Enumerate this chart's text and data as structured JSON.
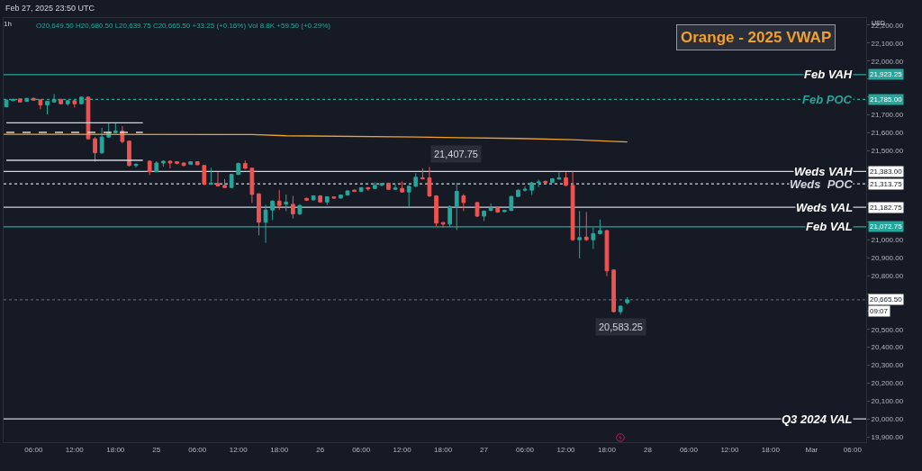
{
  "chart_data": {
    "type": "candlestick",
    "title": "1h",
    "subtitle": "O20,649.50 H20,680.50 L20,639.75 C20,665.50 +33.25 (+0.16%) Vol 8.8K +59.50 (+0.29%)",
    "x": [
      "2025-02-24T02:00",
      "2025-02-24T03:00",
      "2025-02-24T04:00",
      "2025-02-24T05:00",
      "2025-02-24T06:00",
      "2025-02-24T07:00",
      "2025-02-24T08:00",
      "2025-02-24T09:00",
      "2025-02-24T10:00",
      "2025-02-24T11:00",
      "2025-02-24T12:00",
      "2025-02-24T13:00",
      "2025-02-24T14:00",
      "2025-02-24T15:00",
      "2025-02-24T16:00",
      "2025-02-24T17:00",
      "2025-02-24T18:00",
      "2025-02-24T19:00",
      "2025-02-24T20:00",
      "2025-02-24T21:00",
      "2025-02-24T23:00",
      "2025-02-25T00:00",
      "2025-02-25T01:00",
      "2025-02-25T02:00",
      "2025-02-25T03:00",
      "2025-02-25T04:00",
      "2025-02-25T05:00",
      "2025-02-25T06:00",
      "2025-02-25T07:00",
      "2025-02-25T08:00",
      "2025-02-25T09:00",
      "2025-02-25T10:00",
      "2025-02-25T11:00",
      "2025-02-25T12:00",
      "2025-02-25T13:00",
      "2025-02-25T14:00",
      "2025-02-25T15:00",
      "2025-02-25T16:00",
      "2025-02-25T17:00",
      "2025-02-25T18:00",
      "2025-02-25T19:00",
      "2025-02-25T20:00",
      "2025-02-25T21:00",
      "2025-02-25T22:00",
      "2025-02-25T23:00",
      "2025-02-26T00:00",
      "2025-02-26T01:00",
      "2025-02-26T02:00",
      "2025-02-26T03:00",
      "2025-02-26T04:00",
      "2025-02-26T05:00",
      "2025-02-26T06:00",
      "2025-02-26T07:00",
      "2025-02-26T08:00",
      "2025-02-26T09:00",
      "2025-02-26T10:00",
      "2025-02-26T11:00",
      "2025-02-26T12:00",
      "2025-02-26T13:00",
      "2025-02-26T14:00",
      "2025-02-26T15:00",
      "2025-02-26T16:00",
      "2025-02-26T17:00",
      "2025-02-26T18:00",
      "2025-02-26T19:00",
      "2025-02-26T20:00",
      "2025-02-26T21:00",
      "2025-02-26T23:00",
      "2025-02-27T00:00",
      "2025-02-27T01:00",
      "2025-02-27T02:00",
      "2025-02-27T03:00",
      "2025-02-27T04:00",
      "2025-02-27T05:00",
      "2025-02-27T06:00",
      "2025-02-27T07:00",
      "2025-02-27T08:00",
      "2025-02-27T09:00",
      "2025-02-27T10:00",
      "2025-02-27T11:00",
      "2025-02-27T12:00",
      "2025-02-27T13:00",
      "2025-02-27T14:00",
      "2025-02-27T15:00",
      "2025-02-27T16:00",
      "2025-02-27T17:00",
      "2025-02-27T18:00",
      "2025-02-27T19:00",
      "2025-02-27T20:00",
      "2025-02-27T21:00"
    ],
    "ohlc": [
      [
        21744,
        21785,
        21740,
        21781
      ],
      [
        21778,
        21790,
        21775,
        21785
      ],
      [
        21788,
        21790,
        21768,
        21771
      ],
      [
        21774,
        21793,
        21772,
        21791
      ],
      [
        21791,
        21795,
        21778,
        21781
      ],
      [
        21783,
        21786,
        21730,
        21754
      ],
      [
        21754,
        21776,
        21702,
        21774
      ],
      [
        21771,
        21815,
        21768,
        21785
      ],
      [
        21785,
        21788,
        21758,
        21761
      ],
      [
        21761,
        21781,
        21750,
        21778
      ],
      [
        21778,
        21781,
        21740,
        21761
      ],
      [
        21761,
        21800,
        21758,
        21798
      ],
      [
        21798,
        21800,
        21562,
        21565
      ],
      [
        21565,
        21575,
        21437,
        21487
      ],
      [
        21487,
        21626,
        21480,
        21575
      ],
      [
        21575,
        21656,
        21570,
        21602
      ],
      [
        21599,
        21652,
        21595,
        21609
      ],
      [
        21609,
        21636,
        21540,
        21550
      ],
      [
        21552,
        21555,
        21410,
        21416
      ],
      [
        21416,
        21428,
        21405,
        21423
      ],
      [
        21440,
        21445,
        21363,
        21381
      ],
      [
        21381,
        21440,
        21378,
        21430
      ],
      [
        21430,
        21445,
        21410,
        21440
      ],
      [
        21440,
        21445,
        21400,
        21430
      ],
      [
        21437,
        21440,
        21422,
        21428
      ],
      [
        21430,
        21432,
        21412,
        21416
      ],
      [
        21423,
        21440,
        21420,
        21437
      ],
      [
        21437,
        21440,
        21418,
        21420
      ],
      [
        21416,
        21420,
        21305,
        21312
      ],
      [
        21312,
        21403,
        21308,
        21317
      ],
      [
        21315,
        21379,
        21298,
        21302
      ],
      [
        21305,
        21340,
        21290,
        21293
      ],
      [
        21293,
        21370,
        21290,
        21366
      ],
      [
        21366,
        21432,
        21362,
        21427
      ],
      [
        21427,
        21444,
        21398,
        21400
      ],
      [
        21401,
        21405,
        21207,
        21254
      ],
      [
        21258,
        21260,
        21026,
        21099
      ],
      [
        21099,
        21197,
        20984,
        21167
      ],
      [
        21167,
        21222,
        21111,
        21217
      ],
      [
        21217,
        21278,
        21167,
        21193
      ],
      [
        21200,
        21254,
        21161,
        21212
      ],
      [
        21199,
        21246,
        21120,
        21145
      ],
      [
        21145,
        21200,
        21140,
        21192
      ],
      [
        21232,
        21236,
        21218,
        21222
      ],
      [
        21224,
        21250,
        21220,
        21246
      ],
      [
        21246,
        21250,
        21210,
        21212
      ],
      [
        21212,
        21245,
        21195,
        21241
      ],
      [
        21240,
        21244,
        21230,
        21234
      ],
      [
        21234,
        21254,
        21231,
        21251
      ],
      [
        21251,
        21278,
        21248,
        21274
      ],
      [
        21278,
        21282,
        21268,
        21271
      ],
      [
        21271,
        21295,
        21268,
        21292
      ],
      [
        21292,
        21295,
        21275,
        21285
      ],
      [
        21288,
        21322,
        21285,
        21305
      ],
      [
        21305,
        21318,
        21302,
        21315
      ],
      [
        21317,
        21320,
        21280,
        21283
      ],
      [
        21283,
        21310,
        21280,
        21290
      ],
      [
        21288,
        21327,
        21265,
        21268
      ],
      [
        21268,
        21305,
        21187,
        21300
      ],
      [
        21300,
        21373,
        21296,
        21350
      ],
      [
        21347,
        21400,
        21338,
        21342
      ],
      [
        21347,
        21407.75,
        21240,
        21246
      ],
      [
        21246,
        21250,
        21077,
        21094
      ],
      [
        21097,
        21100,
        21069,
        21089
      ],
      [
        21089,
        21192,
        21075,
        21187
      ],
      [
        21187,
        21319,
        21055,
        21271
      ],
      [
        21246,
        21256,
        21161,
        21209
      ],
      [
        21209,
        21212,
        21128,
        21133
      ],
      [
        21133,
        21165,
        21106,
        21161
      ],
      [
        21165,
        21204,
        21160,
        21178
      ],
      [
        21178,
        21185,
        21152,
        21156
      ],
      [
        21158,
        21170,
        21155,
        21165
      ],
      [
        21165,
        21246,
        21160,
        21243
      ],
      [
        21243,
        21282,
        21240,
        21278
      ],
      [
        21278,
        21300,
        21270,
        21283
      ],
      [
        21278,
        21325,
        21251,
        21319
      ],
      [
        21319,
        21337,
        21295,
        21324
      ],
      [
        21327,
        21332,
        21316,
        21319
      ],
      [
        21322,
        21345,
        21318,
        21342
      ],
      [
        21340,
        21378,
        21337,
        21347
      ],
      [
        21347,
        21378,
        21300,
        21305
      ],
      [
        21305,
        21381,
        20995,
        21001
      ],
      [
        21001,
        21161,
        20897,
        21013
      ],
      [
        21016,
        21156,
        20995,
        21001
      ],
      [
        21001,
        21069,
        20950,
        21035
      ],
      [
        21035,
        21114,
        21030,
        21052
      ],
      [
        21052,
        21056,
        20798,
        20827
      ],
      [
        20832,
        20835,
        20595,
        20599
      ],
      [
        20599,
        20635,
        20583.25,
        20630
      ],
      [
        20649.5,
        20680.5,
        20639.75,
        20665.5
      ]
    ],
    "colors": [
      "#26a69a",
      "#26a69a",
      "#ef5350",
      "#26a69a",
      "#ef5350",
      "#ef5350",
      "#26a69a",
      "#26a69a",
      "#ef5350",
      "#26a69a",
      "#ef5350",
      "#26a69a",
      "#ef5350",
      "#ef5350",
      "#26a69a",
      "#26a69a",
      "#26a69a",
      "#ef5350",
      "#ef5350",
      "#26a69a",
      "#ef5350",
      "#26a69a",
      "#26a69a",
      "#ef5350",
      "#ef5350",
      "#ef5350",
      "#26a69a",
      "#ef5350",
      "#ef5350",
      "#26a69a",
      "#ef5350",
      "#ef5350",
      "#26a69a",
      "#26a69a",
      "#ef5350",
      "#ef5350",
      "#ef5350",
      "#26a69a",
      "#26a69a",
      "#ef5350",
      "#26a69a",
      "#ef5350",
      "#26a69a",
      "#ef5350",
      "#26a69a",
      "#ef5350",
      "#26a69a",
      "#ef5350",
      "#26a69a",
      "#26a69a",
      "#ef5350",
      "#26a69a",
      "#ef5350",
      "#26a69a",
      "#26a69a",
      "#ef5350",
      "#26a69a",
      "#ef5350",
      "#26a69a",
      "#26a69a",
      "#ef5350",
      "#ef5350",
      "#ef5350",
      "#ef5350",
      "#26a69a",
      "#26a69a",
      "#ef5350",
      "#ef5350",
      "#26a69a",
      "#26a69a",
      "#ef5350",
      "#26a69a",
      "#26a69a",
      "#26a69a",
      "#26a69a",
      "#26a69a",
      "#26a69a",
      "#ef5350",
      "#26a69a",
      "#26a69a",
      "#ef5350",
      "#ef5350",
      "#26a69a",
      "#ef5350",
      "#26a69a",
      "#26a69a",
      "#ef5350",
      "#ef5350",
      "#26a69a",
      "#26a69a"
    ],
    "series": [
      {
        "type": "line",
        "color": "#f0a02c",
        "x": [
          "2025-02-24T01:36",
          "2025-02-25T14:00",
          "2025-02-25T19:00",
          "2025-02-26T14:00",
          "2025-02-27T05:00",
          "2025-02-27T13:00",
          "2025-02-27T21:00"
        ],
        "values": [
          21590,
          21589,
          21582,
          21575,
          21567,
          21560,
          21547
        ]
      },
      {
        "type": "line",
        "color": "#d1d4dc",
        "line_style": "solid",
        "x": [
          "2025-02-24T02:00",
          "2025-02-24T22:00"
        ],
        "values": [
          21654,
          21654
        ]
      },
      {
        "type": "line",
        "color": "#d1d4dc",
        "line_style": "dashed",
        "x": [
          "2025-02-24T02:00",
          "2025-02-24T22:00"
        ],
        "values": [
          21601,
          21601
        ]
      },
      {
        "type": "line",
        "color": "#d1d4dc",
        "line_style": "solid",
        "x": [
          "2025-02-24T02:00",
          "2025-02-24T22:00"
        ],
        "values": [
          21445,
          21445
        ]
      }
    ],
    "ref_lines": [
      {
        "axis": "y",
        "value": 21923.25,
        "label": "Feb VAH",
        "color": "#26a69a",
        "line_style": "solid"
      },
      {
        "axis": "y",
        "value": 21785,
        "label": "Feb POC",
        "color": "#26a69a",
        "line_style": "dotted"
      },
      {
        "axis": "y",
        "value": 21383,
        "label": "Weds VAH",
        "color": "#d1d4dc",
        "line_style": "solid"
      },
      {
        "axis": "y",
        "value": 21313.75,
        "label": "Weds  POC",
        "color": "#d1d4dc",
        "line_style": "dotted"
      },
      {
        "axis": "y",
        "value": 21182.75,
        "label": "Weds VAL",
        "color": "#d1d4dc",
        "line_style": "solid"
      },
      {
        "axis": "y",
        "value": 21072.75,
        "label": "Feb VAL",
        "color": "#26a69a",
        "line_style": "solid"
      },
      {
        "axis": "y",
        "value": 20000,
        "label": "Q3 2024 VAL",
        "color": "#d1d4dc",
        "line_style": "solid"
      },
      {
        "axis": "y",
        "value": 20665.5,
        "color": "#5d606b",
        "line_style": "dotted"
      }
    ],
    "annotations": [
      "Feb 27, 2025 23:50 UTC",
      "Orange - 2025 VWAP",
      "USD",
      "09:07",
      {
        "text": "21,407.75",
        "x": "2025-02-26T16:00",
        "y": 21407.75
      },
      {
        "text": "20,583.25",
        "x": "2025-02-27T20:00",
        "y": 20583.25
      },
      {
        "text": "21,923.25",
        "y": 21923.25
      },
      {
        "text": "21,785.00",
        "y": 21785
      },
      {
        "text": "21,383.00",
        "y": 21383
      },
      {
        "text": "21,313.75",
        "y": 21313.75
      },
      {
        "text": "21,182.75",
        "y": 21182.75
      },
      {
        "text": "21,072.75",
        "y": 21072.75
      },
      {
        "text": "20,665.50",
        "y": 20665.5
      }
    ],
    "xlim": [
      "2025-02-24T01:36",
      "2025-03-01T08:00"
    ],
    "xticks": [
      {
        "value": "2025-02-24T06:00",
        "label": "06:00"
      },
      {
        "value": "2025-02-24T12:00",
        "label": "12:00"
      },
      {
        "value": "2025-02-24T18:00",
        "label": "18:00"
      },
      {
        "value": "2025-02-25T00:00",
        "label": "25"
      },
      {
        "value": "2025-02-25T06:00",
        "label": "06:00"
      },
      {
        "value": "2025-02-25T12:00",
        "label": "12:00"
      },
      {
        "value": "2025-02-25T18:00",
        "label": "18:00"
      },
      {
        "value": "2025-02-26T00:00",
        "label": "26"
      },
      {
        "value": "2025-02-26T06:00",
        "label": "06:00"
      },
      {
        "value": "2025-02-26T12:00",
        "label": "12:00"
      },
      {
        "value": "2025-02-26T18:00",
        "label": "18:00"
      },
      {
        "value": "2025-02-27T00:00",
        "label": "27"
      },
      {
        "value": "2025-02-27T06:00",
        "label": "06:00"
      },
      {
        "value": "2025-02-27T12:00",
        "label": "12:00"
      },
      {
        "value": "2025-02-27T18:00",
        "label": "18:00"
      },
      {
        "value": "2025-02-28T00:00",
        "label": "28"
      },
      {
        "value": "2025-02-28T06:00",
        "label": "06:00"
      },
      {
        "value": "2025-02-28T12:00",
        "label": "12:00"
      },
      {
        "value": "2025-02-28T18:00",
        "label": "18:00"
      },
      {
        "value": "2025-03-01T00:00",
        "label": "Mar"
      },
      {
        "value": "2025-03-01T06:00",
        "label": "06:00"
      }
    ],
    "ylim": [
      19870,
      22240
    ],
    "yticks": [
      {
        "value": 19900,
        "label": "19,900.00"
      },
      {
        "value": 20000,
        "label": "20,000.00"
      },
      {
        "value": 20100,
        "label": "20,100.00"
      },
      {
        "value": 20200,
        "label": "20,200.00"
      },
      {
        "value": 20300,
        "label": "20,300.00"
      },
      {
        "value": 20400,
        "label": "20,400.00"
      },
      {
        "value": 20500,
        "label": "20,500.00"
      },
      {
        "value": 20600,
        "label": null
      },
      {
        "value": 20700,
        "label": null
      },
      {
        "value": 20800,
        "label": "20,800.00"
      },
      {
        "value": 20900,
        "label": "20,900.00"
      },
      {
        "value": 21000,
        "label": "21,000.00"
      },
      {
        "value": 21100,
        "label": null
      },
      {
        "value": 21200,
        "label": null
      },
      {
        "value": 21300,
        "label": null
      },
      {
        "value": 21400,
        "label": null
      },
      {
        "value": 21500,
        "label": "21,500.00"
      },
      {
        "value": 21600,
        "label": "21,600.00"
      },
      {
        "value": 21700,
        "label": "21,700.00"
      },
      {
        "value": 21800,
        "label": null
      },
      {
        "value": 21900,
        "label": null
      },
      {
        "value": 22000,
        "label": "22,000.00"
      },
      {
        "value": 22100,
        "label": "22,100.00"
      },
      {
        "value": 22200,
        "label": "22,200.00"
      }
    ]
  }
}
